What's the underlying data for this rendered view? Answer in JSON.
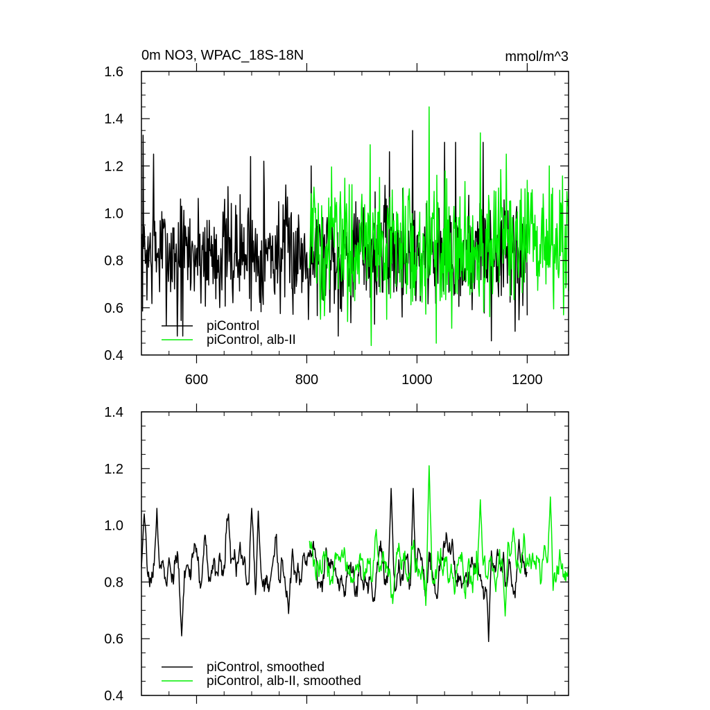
{
  "chart_data": [
    {
      "type": "line",
      "title": "0m NO3, WPAC_18S-18N",
      "units": "mmol/m^3",
      "xlim": [
        500,
        1275
      ],
      "ylim": [
        0.4,
        1.6
      ],
      "x_ticks": [
        "600",
        "800",
        "1000",
        "1200"
      ],
      "y_ticks": [
        "0.4",
        "0.6",
        "0.8",
        "1.0",
        "1.2",
        "1.4",
        "1.6"
      ],
      "legend_position": "bottom-left",
      "series": [
        {
          "name": "piControl",
          "color": "#000000",
          "x_range": [
            500,
            1200
          ],
          "mean": 0.83,
          "amplitude": 0.15,
          "peaks": [
            [
              503,
              1.33
            ],
            [
              522,
              1.25
            ],
            [
              565,
              0.48
            ],
            [
              575,
              0.48
            ],
            [
              698,
              1.24
            ],
            [
              722,
              1.22
            ],
            [
              808,
              1.2
            ],
            [
              857,
              0.48
            ],
            [
              950,
              1.26
            ],
            [
              992,
              1.35
            ],
            [
              1050,
              1.3
            ],
            [
              1070,
              1.3
            ],
            [
              1120,
              1.3
            ],
            [
              1135,
              0.46
            ],
            [
              1178,
              0.5
            ]
          ]
        },
        {
          "name": "piControl, alb-II",
          "color": "#00ee00",
          "x_range": [
            805,
            1275
          ],
          "mean": 0.87,
          "amplitude": 0.17,
          "peaks": [
            [
              915,
              1.29
            ],
            [
              917,
              0.44
            ],
            [
              1022,
              1.45
            ],
            [
              1035,
              0.45
            ],
            [
              1115,
              1.34
            ],
            [
              1162,
              1.25
            ],
            [
              1240,
              1.2
            ],
            [
              1266,
              0.57
            ]
          ]
        }
      ]
    },
    {
      "type": "line",
      "xlim": [
        500,
        1275
      ],
      "ylim": [
        0.4,
        1.4
      ],
      "y_ticks": [
        "0.4",
        "0.6",
        "0.8",
        "1.0",
        "1.2",
        "1.4"
      ],
      "legend_position": "bottom-left",
      "series": [
        {
          "name": "piControl, smoothed",
          "color": "#000000",
          "x_range": [
            500,
            1200
          ],
          "mean": 0.84,
          "amplitude": 0.07,
          "peaks": [
            [
              505,
              1.04
            ],
            [
              528,
              1.06
            ],
            [
              573,
              0.61
            ],
            [
              700,
              1.06
            ],
            [
              712,
              1.05
            ],
            [
              953,
              1.13
            ],
            [
              993,
              1.13
            ],
            [
              1130,
              0.59
            ],
            [
              1185,
              0.95
            ]
          ]
        },
        {
          "name": "piControl, alb-II, smoothed",
          "color": "#00ee00",
          "x_range": [
            805,
            1275
          ],
          "mean": 0.86,
          "amplitude": 0.07,
          "peaks": [
            [
              1022,
              1.21
            ],
            [
              1115,
              1.09
            ],
            [
              1160,
              0.68
            ],
            [
              1175,
              0.99
            ],
            [
              1242,
              1.1
            ]
          ]
        }
      ]
    }
  ]
}
